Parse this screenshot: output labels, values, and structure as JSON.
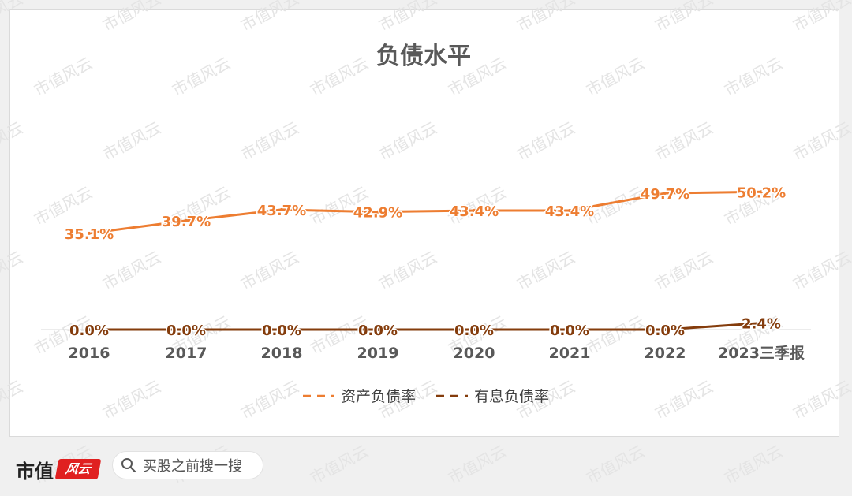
{
  "chart_data": {
    "type": "line",
    "title": "负债水平",
    "categories": [
      "2016",
      "2017",
      "2018",
      "2019",
      "2020",
      "2021",
      "2022",
      "2023三季报"
    ],
    "series": [
      {
        "name": "资产负债率",
        "values": [
          35.1,
          39.7,
          43.7,
          42.9,
          43.4,
          43.4,
          49.7,
          50.2
        ],
        "labels": [
          "35.1%",
          "39.7%",
          "43.7%",
          "42.9%",
          "43.4%",
          "43.4%",
          "49.7%",
          "50.2%"
        ],
        "color": "#ed7d31"
      },
      {
        "name": "有息负债率",
        "values": [
          0.0,
          0.0,
          0.0,
          0.0,
          0.0,
          0.0,
          0.0,
          2.4
        ],
        "labels": [
          "0.0%",
          "0.0%",
          "0.0%",
          "0.0%",
          "0.0%",
          "0.0%",
          "0.0%",
          "2.4%"
        ],
        "color": "#843c0c"
      }
    ],
    "ylim": [
      0,
      100
    ],
    "legend": "bottom",
    "grid": false,
    "baseline_color": "#d9d9d9"
  },
  "watermark": "市值风云",
  "footer": {
    "brand_text": "市值",
    "brand_stamp": "风云",
    "search_placeholder": "买股之前搜一搜"
  }
}
